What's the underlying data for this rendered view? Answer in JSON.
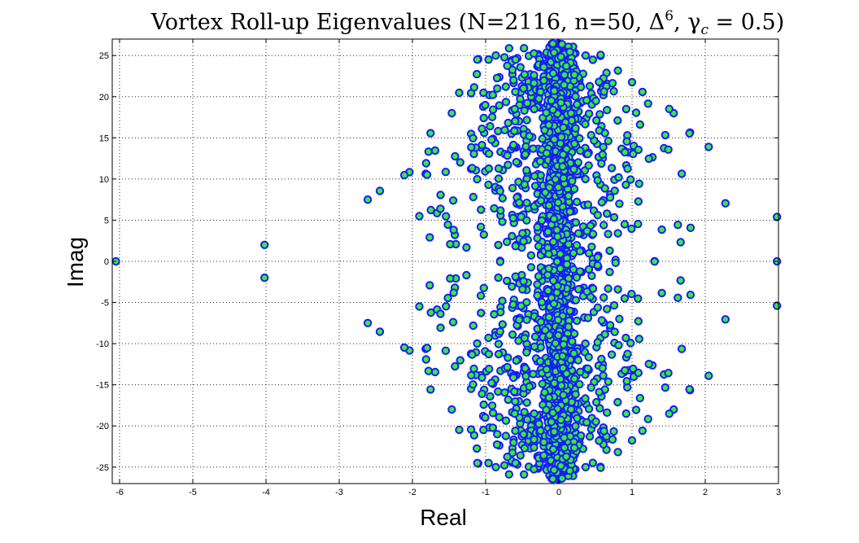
{
  "chart_data": {
    "type": "scatter",
    "title": "Vortex Roll-up Eigenvalues (N=2116, n=50, Δ⁶, γ_c = 0.5)",
    "title_parts": {
      "main": "Vortex Roll-up Eigenvalues (N=2116, n=50, Δ",
      "delta_exp": "6",
      "middle": ", γ",
      "gamma_sub": "c",
      "tail": " = 0.5)"
    },
    "xlabel": "Real",
    "ylabel": "Imag",
    "xlim": [
      -6.1,
      3.0
    ],
    "ylim": [
      -27,
      27
    ],
    "xticks": [
      -6,
      -5,
      -4,
      -3,
      -2,
      -1,
      0,
      1,
      2,
      3
    ],
    "xtick_labels": [
      "-6",
      "-5",
      "-4",
      "-3",
      "-2",
      "-1",
      "0",
      "1",
      "2",
      "3"
    ],
    "yticks": [
      25,
      20,
      15,
      10,
      5,
      0,
      -5,
      -10,
      -15,
      -20,
      -25
    ],
    "ytick_labels": [
      "25",
      "20",
      "15",
      "10",
      "5",
      "0",
      "-5",
      "-10",
      "-15",
      "-20",
      "-25"
    ],
    "grid": true,
    "marker": {
      "face_color": "#33ee33",
      "edge_color": "#1a1aff"
    },
    "series_note": "Eigenvalue cloud symmetric about the real axis (conjugate pairs); dense vertical band near Re≈0.",
    "outliers": [
      [
        -6.05,
        0
      ],
      [
        -4.02,
        2.0
      ],
      [
        -4.02,
        -2.0
      ],
      [
        2.98,
        0
      ],
      [
        2.98,
        5.4
      ],
      [
        2.98,
        -5.4
      ]
    ],
    "cloud": {
      "count": 2116,
      "components": [
        {
          "center_x": 0.0,
          "sigma_x": 0.12,
          "y_range": [
            -26.5,
            26.5
          ],
          "weight": 0.52
        },
        {
          "center_x": -0.25,
          "sigma_x": 0.55,
          "y_range": [
            -26,
            26
          ],
          "weight": 0.28
        },
        {
          "center_x": 0.35,
          "sigma_x": 0.65,
          "y_range": [
            -25,
            25
          ],
          "weight": 0.15
        },
        {
          "center_x": -1.0,
          "sigma_x": 1.2,
          "y_range": [
            -15,
            15
          ],
          "weight": 0.05
        }
      ]
    }
  }
}
